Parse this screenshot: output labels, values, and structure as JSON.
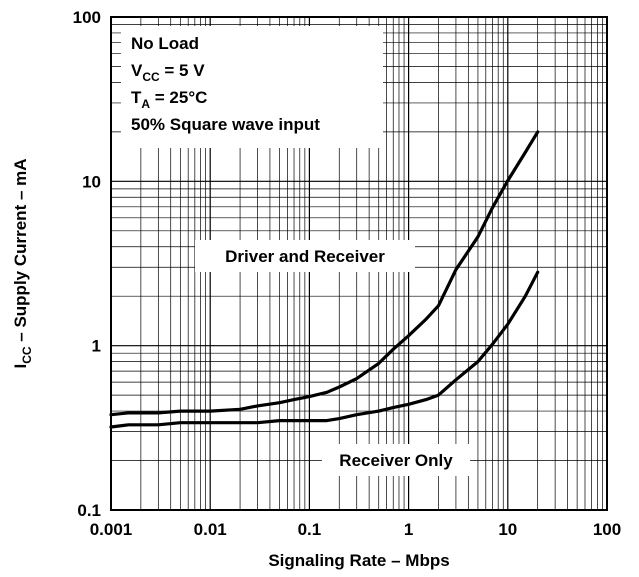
{
  "chart_data": {
    "type": "line",
    "x_scale": "log",
    "y_scale": "log",
    "xlim": [
      0.001,
      100
    ],
    "ylim": [
      0.1,
      100
    ],
    "x_ticks": [
      "0.001",
      "0.01",
      "0.1",
      "1",
      "10",
      "100"
    ],
    "y_ticks": [
      "0.1",
      "1",
      "10",
      "100"
    ],
    "xlabel": "Signaling Rate – Mbps",
    "ylabel": {
      "main": "I",
      "sub": "CC",
      "rest": " – Supply Current – mA"
    },
    "grid": true,
    "conditions": [
      {
        "main": "No Load"
      },
      {
        "main": "V",
        "sub": "CC",
        "rest": " = 5 V"
      },
      {
        "main": "T",
        "sub": "A",
        "rest": " = 25°C"
      },
      {
        "main": "50% Square wave input"
      }
    ],
    "series": [
      {
        "name": "Driver and Receiver",
        "x": [
          0.001,
          0.0015,
          0.002,
          0.003,
          0.005,
          0.01,
          0.02,
          0.03,
          0.05,
          0.07,
          0.1,
          0.15,
          0.2,
          0.3,
          0.5,
          0.7,
          1,
          1.5,
          2,
          3,
          5,
          7,
          10,
          15,
          20
        ],
        "y": [
          0.38,
          0.39,
          0.39,
          0.39,
          0.4,
          0.4,
          0.41,
          0.43,
          0.45,
          0.47,
          0.49,
          0.52,
          0.56,
          0.63,
          0.78,
          0.95,
          1.15,
          1.45,
          1.75,
          2.9,
          4.6,
          6.9,
          10.1,
          15,
          20
        ]
      },
      {
        "name": "Receiver Only",
        "x": [
          0.001,
          0.0015,
          0.002,
          0.003,
          0.005,
          0.01,
          0.02,
          0.03,
          0.05,
          0.07,
          0.1,
          0.15,
          0.2,
          0.3,
          0.5,
          0.7,
          1,
          1.5,
          2,
          3,
          5,
          7,
          10,
          15,
          20
        ],
        "y": [
          0.32,
          0.33,
          0.33,
          0.33,
          0.34,
          0.34,
          0.34,
          0.34,
          0.35,
          0.35,
          0.35,
          0.35,
          0.36,
          0.38,
          0.4,
          0.42,
          0.44,
          0.47,
          0.5,
          0.62,
          0.8,
          1.02,
          1.35,
          2.0,
          2.8
        ]
      }
    ],
    "annotations": [
      {
        "text": "Driver and Receiver",
        "series": 0
      },
      {
        "text": "Receiver Only",
        "series": 1
      }
    ]
  }
}
